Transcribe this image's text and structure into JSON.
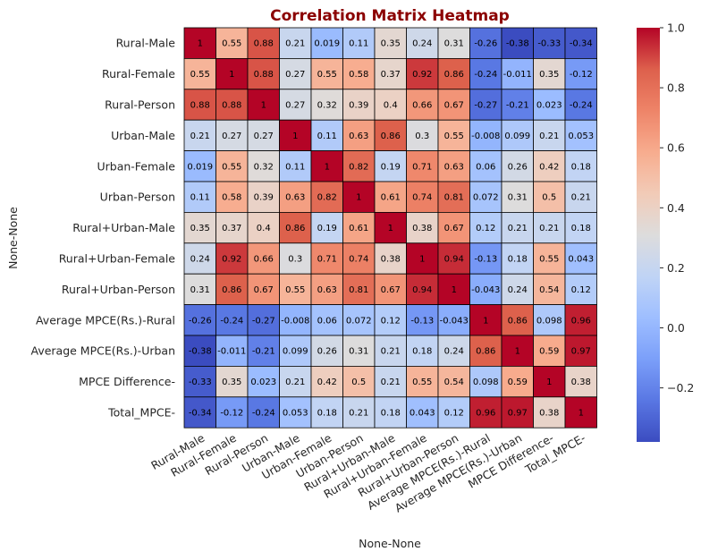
{
  "chart_data": {
    "type": "heatmap",
    "title": "Correlation Matrix Heatmap",
    "xlabel": "None-None",
    "ylabel": "None-None",
    "colormap": "coolwarm",
    "vmin": -0.38,
    "vmax": 1.0,
    "colorbar_ticks": [
      "1.0",
      "0.8",
      "0.6",
      "0.4",
      "0.2",
      "0.0",
      "−0.2"
    ],
    "labels": [
      "Rural-Male",
      "Rural-Female",
      "Rural-Person",
      "Urban-Male",
      "Urban-Female",
      "Urban-Person",
      "Rural+Urban-Male",
      "Rural+Urban-Female",
      "Rural+Urban-Person",
      "Average MPCE(Rs.)-Rural",
      "Average MPCE(Rs.)-Urban",
      "MPCE Difference-",
      "Total_MPCE-"
    ],
    "cell_text": [
      [
        "1",
        "0.55",
        "0.88",
        "0.21",
        "0.019",
        "0.11",
        "0.35",
        "0.24",
        "0.31",
        "-0.26",
        "-0.38",
        "-0.33",
        "-0.34"
      ],
      [
        "0.55",
        "1",
        "0.88",
        "0.27",
        "0.55",
        "0.58",
        "0.37",
        "0.92",
        "0.86",
        "-0.24",
        "-0.011",
        "0.35",
        "-0.12"
      ],
      [
        "0.88",
        "0.88",
        "1",
        "0.27",
        "0.32",
        "0.39",
        "0.4",
        "0.66",
        "0.67",
        "-0.27",
        "-0.21",
        "0.023",
        "-0.24"
      ],
      [
        "0.21",
        "0.27",
        "0.27",
        "1",
        "0.11",
        "0.63",
        "0.86",
        "0.3",
        "0.55",
        "-0.008",
        "0.099",
        "0.21",
        "0.053"
      ],
      [
        "0.019",
        "0.55",
        "0.32",
        "0.11",
        "1",
        "0.82",
        "0.19",
        "0.71",
        "0.63",
        "0.06",
        "0.26",
        "0.42",
        "0.18"
      ],
      [
        "0.11",
        "0.58",
        "0.39",
        "0.63",
        "0.82",
        "1",
        "0.61",
        "0.74",
        "0.81",
        "0.072",
        "0.31",
        "0.5",
        "0.21"
      ],
      [
        "0.35",
        "0.37",
        "0.4",
        "0.86",
        "0.19",
        "0.61",
        "1",
        "0.38",
        "0.67",
        "0.12",
        "0.21",
        "0.21",
        "0.18"
      ],
      [
        "0.24",
        "0.92",
        "0.66",
        "0.3",
        "0.71",
        "0.74",
        "0.38",
        "1",
        "0.94",
        "-0.13",
        "0.18",
        "0.55",
        "0.043"
      ],
      [
        "0.31",
        "0.86",
        "0.67",
        "0.55",
        "0.63",
        "0.81",
        "0.67",
        "0.94",
        "1",
        "-0.043",
        "0.24",
        "0.54",
        "0.12"
      ],
      [
        "-0.26",
        "-0.24",
        "-0.27",
        "-0.008",
        "0.06",
        "0.072",
        "0.12",
        "-0.13",
        "-0.043",
        "1",
        "0.86",
        "0.098",
        "0.96"
      ],
      [
        "-0.38",
        "-0.011",
        "-0.21",
        "0.099",
        "0.26",
        "0.31",
        "0.21",
        "0.18",
        "0.24",
        "0.86",
        "1",
        "0.59",
        "0.97"
      ],
      [
        "-0.33",
        "0.35",
        "0.023",
        "0.21",
        "0.42",
        "0.5",
        "0.21",
        "0.55",
        "0.54",
        "0.098",
        "0.59",
        "1",
        "0.38"
      ],
      [
        "-0.34",
        "-0.12",
        "-0.24",
        "0.053",
        "0.18",
        "0.21",
        "0.18",
        "0.043",
        "0.12",
        "0.96",
        "0.97",
        "0.38",
        "1"
      ]
    ]
  }
}
